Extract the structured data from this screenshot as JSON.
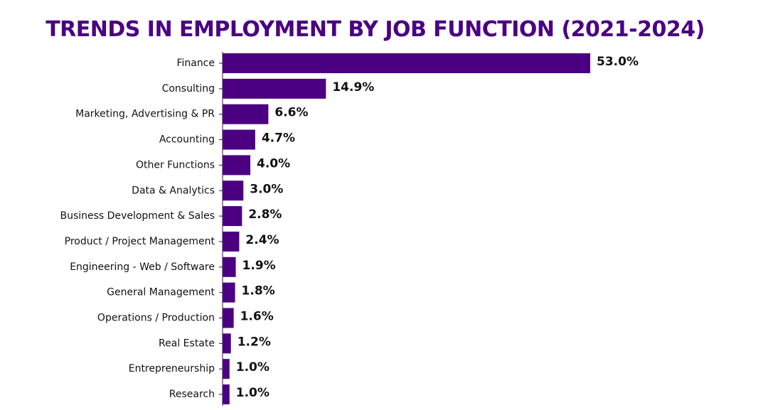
{
  "chart_data": {
    "type": "bar",
    "orientation": "horizontal",
    "title": "TRENDS IN EMPLOYMENT BY JOB FUNCTION (2021-2024)",
    "xlabel": "",
    "ylabel": "",
    "categories": [
      "Finance",
      "Consulting",
      "Marketing, Advertising & PR",
      "Accounting",
      "Other Functions",
      "Data & Analytics",
      "Business Development & Sales",
      "Product / Project Management",
      "Engineering - Web / Software",
      "General Management",
      "Operations / Production",
      "Real Estate",
      "Entrepreneurship",
      "Research"
    ],
    "values": [
      53.0,
      14.9,
      6.6,
      4.7,
      4.0,
      3.0,
      2.8,
      2.4,
      1.9,
      1.8,
      1.6,
      1.2,
      1.0,
      1.0
    ],
    "value_labels": [
      "53.0%",
      "14.9%",
      "6.6%",
      "4.7%",
      "4.0%",
      "3.0%",
      "2.8%",
      "2.4%",
      "1.9%",
      "1.8%",
      "1.6%",
      "1.2%",
      "1.0%",
      "1.0%"
    ],
    "xlim": [
      0,
      53.0
    ],
    "bar_color": "#4b0082",
    "title_color": "#4b0082",
    "grid": false
  }
}
